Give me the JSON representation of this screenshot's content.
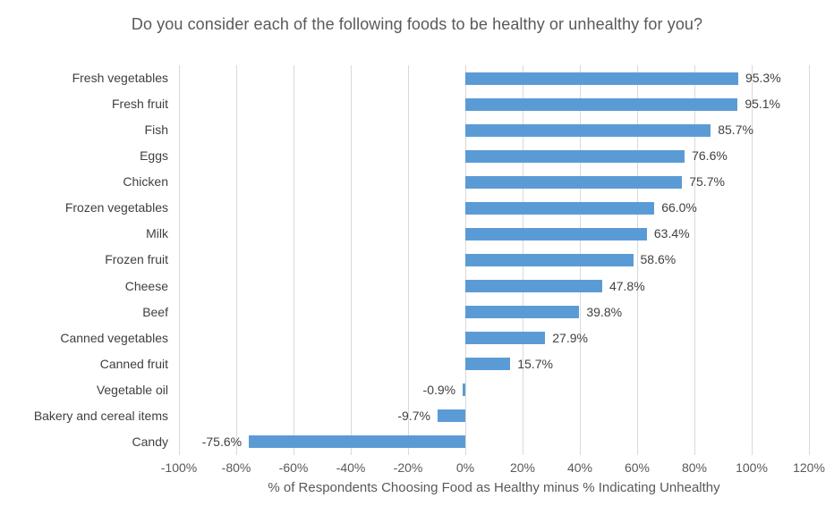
{
  "chart_data": {
    "type": "bar",
    "orientation": "horizontal",
    "title": "Do you consider each of the following foods to be healthy or unhealthy for you?",
    "categories": [
      "Fresh vegetables",
      "Fresh fruit",
      "Fish",
      "Eggs",
      "Chicken",
      "Frozen vegetables",
      "Milk",
      "Frozen fruit",
      "Cheese",
      "Beef",
      "Canned vegetables",
      "Canned fruit",
      "Vegetable oil",
      "Bakery and cereal items",
      "Candy"
    ],
    "values": [
      95.3,
      95.1,
      85.7,
      76.6,
      75.7,
      66.0,
      63.4,
      58.6,
      47.8,
      39.8,
      27.9,
      15.7,
      -0.9,
      -9.7,
      -75.6
    ],
    "data_labels": [
      "95.3%",
      "95.1%",
      "85.7%",
      "76.6%",
      "75.7%",
      "66.0%",
      "63.4%",
      "58.6%",
      "47.8%",
      "39.8%",
      "27.9%",
      "15.7%",
      "-0.9%",
      "-9.7%",
      "-75.6%"
    ],
    "xlabel": "% of Respondents Choosing Food as Healthy minus % Indicating Unhealthy",
    "ylabel": "",
    "xlim": [
      -100,
      120
    ],
    "xticks": [
      -100,
      -80,
      -60,
      -40,
      -20,
      0,
      20,
      40,
      60,
      80,
      100,
      120
    ],
    "xtick_labels": [
      "-100%",
      "-80%",
      "-60%",
      "-40%",
      "-20%",
      "0%",
      "20%",
      "40%",
      "60%",
      "80%",
      "100%",
      "120%"
    ],
    "grid": true,
    "legend": false,
    "colors": {
      "bar": "#5B9BD5",
      "gridline": "#D9D9D9",
      "title_text": "#595959",
      "label_text": "#404040",
      "tick_text": "#595959",
      "background": "#FFFFFF"
    }
  }
}
